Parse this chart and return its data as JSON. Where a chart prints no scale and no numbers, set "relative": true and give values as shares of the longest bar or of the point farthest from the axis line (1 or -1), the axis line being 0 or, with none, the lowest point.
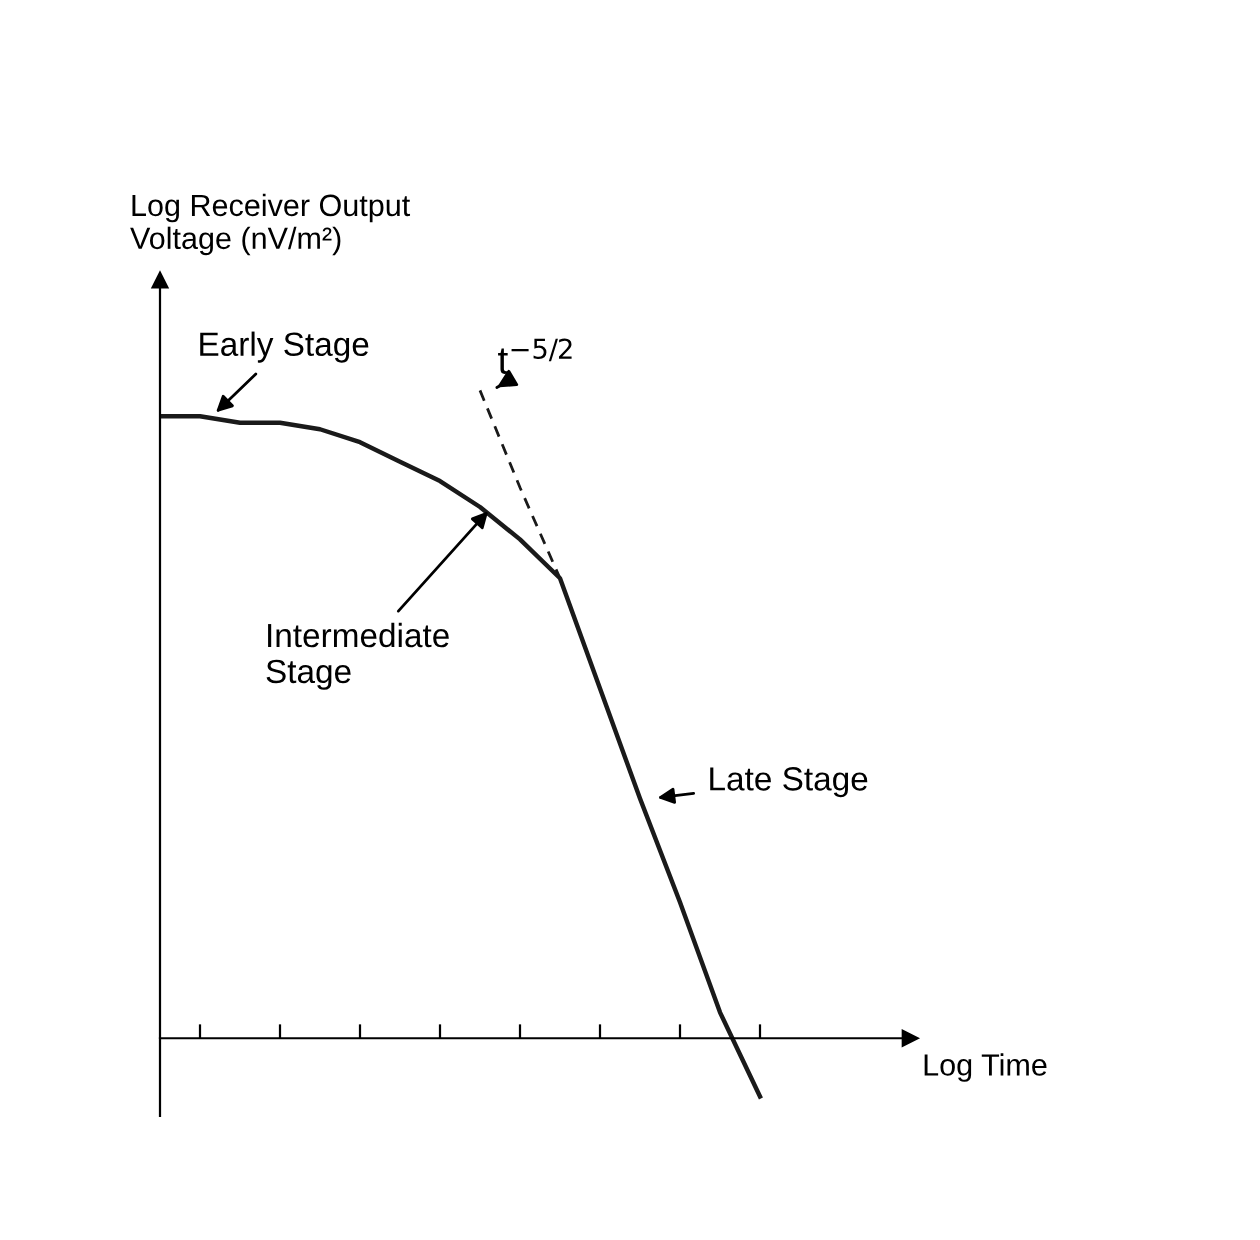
{
  "chart_data": {
    "type": "line",
    "relative": true,
    "xlabel": "Log Time",
    "ylabel": "Log Receiver Output\nVoltage (nV/m²)",
    "categories": [
      null,
      null,
      null,
      null,
      null,
      null,
      null,
      null,
      null,
      null,
      null,
      null,
      null,
      null,
      null,
      null
    ],
    "series": [
      {
        "color": "#1a1a1a",
        "line_style": "solid",
        "values": [
          0.96,
          0.96,
          0.95,
          0.95,
          0.94,
          0.92,
          0.89,
          0.86,
          0.82,
          0.77,
          0.71,
          0.54,
          0.37,
          0.21,
          0.04,
          -0.09
        ]
      },
      {
        "color": "#1a1a1a",
        "line_style": "dashed",
        "values": [
          null,
          null,
          null,
          null,
          null,
          null,
          null,
          null,
          1.0,
          0.85,
          0.71,
          null,
          null,
          null,
          null,
          null
        ]
      }
    ],
    "annotations": [
      "Early Stage",
      "t$^{−5/2}$",
      "Intermediate\nStage",
      "Late Stage"
    ],
    "grid": false,
    "legend": false,
    "marker": "none"
  }
}
